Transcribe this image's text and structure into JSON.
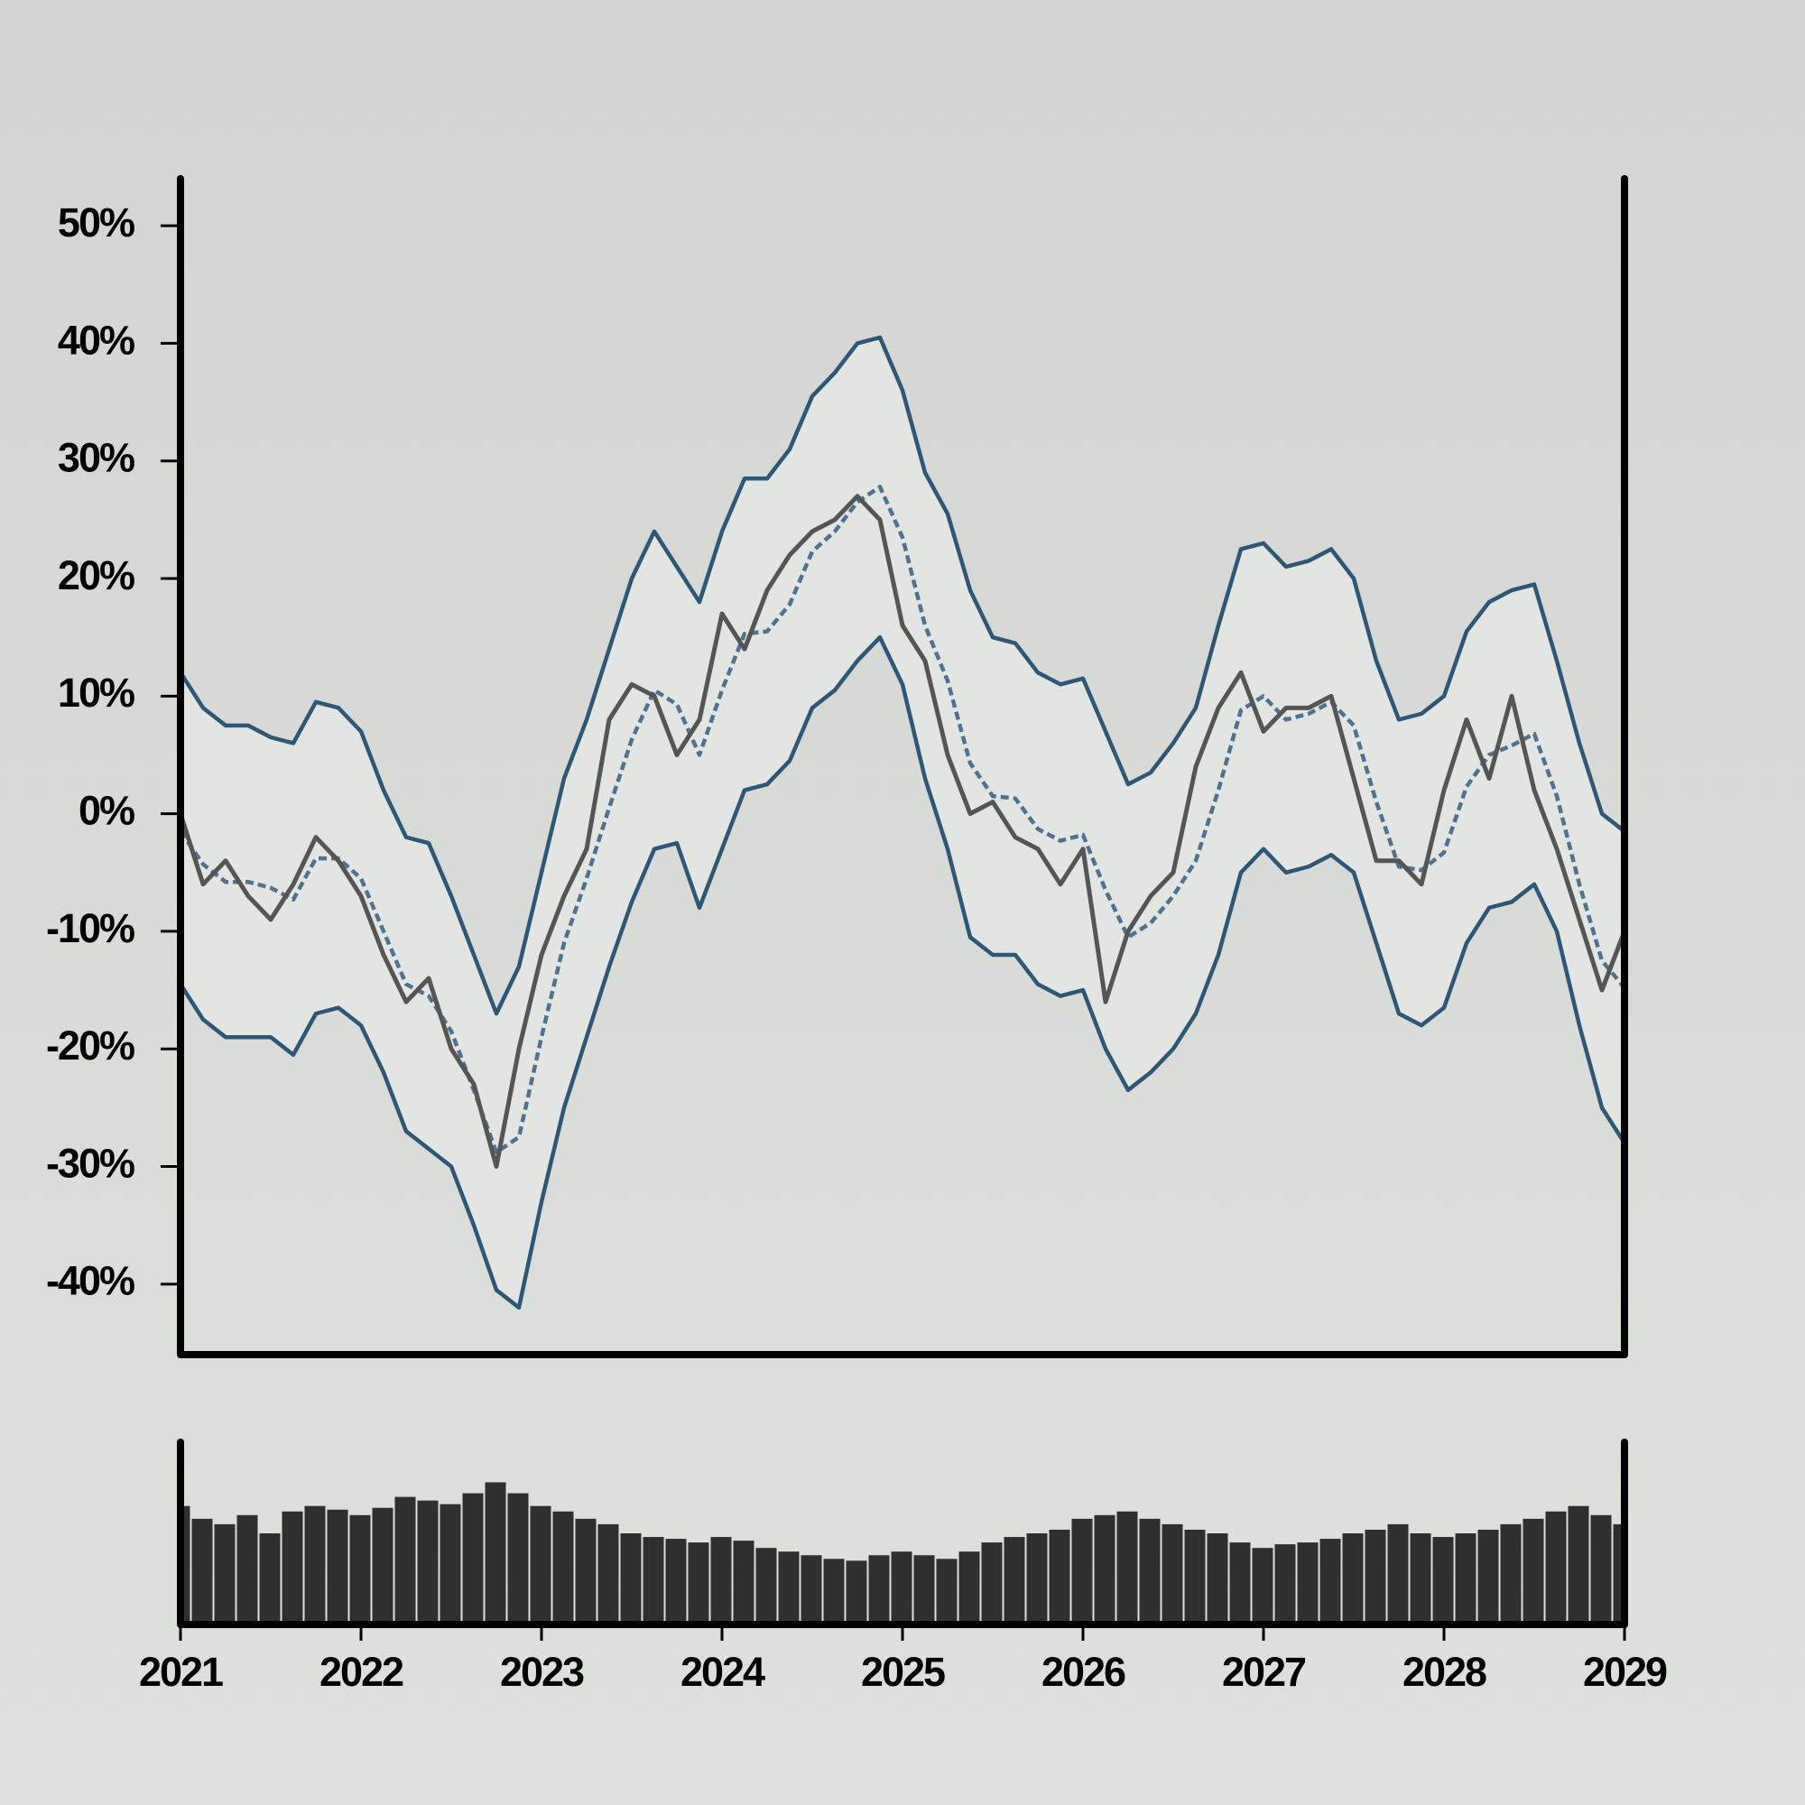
{
  "chart_data": [
    {
      "type": "line",
      "x": [
        2021,
        2021.125,
        2021.25,
        2021.375,
        2021.5,
        2021.625,
        2021.75,
        2021.875,
        2022,
        2022.125,
        2022.25,
        2022.375,
        2022.5,
        2022.625,
        2022.75,
        2022.875,
        2023,
        2023.125,
        2023.25,
        2023.375,
        2023.5,
        2023.625,
        2023.75,
        2023.875,
        2024,
        2024.125,
        2024.25,
        2024.375,
        2024.5,
        2024.625,
        2024.75,
        2024.875,
        2025,
        2025.125,
        2025.25,
        2025.375,
        2025.5,
        2025.625,
        2025.75,
        2025.875,
        2026,
        2026.125,
        2026.25,
        2026.375,
        2026.5,
        2026.625,
        2026.75,
        2026.875,
        2027,
        2027.125,
        2027.25,
        2027.375,
        2027.5,
        2027.625,
        2027.75,
        2027.875,
        2028,
        2028.125,
        2028.25,
        2028.375,
        2028.5,
        2028.625,
        2028.75,
        2028.875,
        2029
      ],
      "band_color": "#e3e5e3",
      "series": [
        {
          "role": "upper",
          "color": "#2e5675",
          "values": [
            12,
            9,
            7.5,
            7.5,
            6.5,
            6,
            9.5,
            9,
            7,
            2,
            -2,
            -2.5,
            -7,
            -12,
            -17,
            -13,
            -5,
            3,
            8,
            14,
            20,
            24,
            21,
            18,
            24,
            28.5,
            28.5,
            31,
            35.5,
            37.5,
            40,
            40.5,
            36,
            29,
            25.5,
            19,
            15,
            14.5,
            12,
            11,
            11.5,
            7,
            2.5,
            3.5,
            6,
            9,
            16,
            22.5,
            23,
            21,
            21.5,
            22.5,
            20,
            13,
            8,
            8.5,
            10,
            15.5,
            18,
            19,
            19.5,
            13,
            6,
            0,
            -1.5
          ]
        },
        {
          "role": "lower",
          "color": "#2e5675",
          "values": [
            -14.5,
            -17.5,
            -19,
            -19,
            -19,
            -20.5,
            -17,
            -16.5,
            -18,
            -22,
            -27,
            -28.5,
            -30,
            -35,
            -40.5,
            -42,
            -33,
            -25,
            -19,
            -13,
            -7.5,
            -3,
            -2.5,
            -8,
            -3,
            2,
            2.5,
            4.5,
            9,
            10.5,
            13,
            15,
            11,
            3,
            -3,
            -10.5,
            -12,
            -12,
            -14.5,
            -15.5,
            -15,
            -20,
            -23.5,
            -22,
            -20,
            -17,
            -12,
            -5,
            -3,
            -5,
            -4.5,
            -3.5,
            -5,
            -11,
            -17,
            -18,
            -16.5,
            -11,
            -8,
            -7.5,
            -6,
            -10,
            -18,
            -25,
            -28
          ]
        },
        {
          "role": "middle",
          "color": "#4f7290",
          "dashed": true,
          "values": [
            -1.5,
            -4.3,
            -5.8,
            -5.8,
            -6.3,
            -7.3,
            -3.8,
            -3.8,
            -5.5,
            -10,
            -14.5,
            -15.5,
            -18.5,
            -23.5,
            -28.8,
            -27.5,
            -19,
            -11,
            -5.5,
            0.5,
            6.3,
            10.5,
            9.3,
            5,
            10.5,
            15.3,
            15.5,
            17.8,
            22.3,
            24,
            26.5,
            27.8,
            23.5,
            16,
            11.3,
            4.3,
            1.5,
            1.3,
            -1.3,
            -2.3,
            -1.8,
            -6.5,
            -10.5,
            -9.3,
            -7,
            -4,
            2,
            8.8,
            10,
            8,
            8.5,
            9.5,
            7.5,
            1,
            -4.5,
            -4.8,
            -3.3,
            2.3,
            5,
            5.8,
            6.8,
            1.5,
            -6,
            -12.5,
            -14.8
          ]
        },
        {
          "role": "price",
          "color": "#555555",
          "values": [
            0,
            -6,
            -4,
            -7,
            -9,
            -6,
            -2,
            -4,
            -7,
            -12,
            -16,
            -14,
            -20,
            -23,
            -30,
            -20,
            -12,
            -7,
            -3,
            8,
            11,
            10,
            5,
            8,
            17,
            14,
            19,
            22,
            24,
            25,
            27,
            25,
            16,
            13,
            5,
            0,
            1,
            -2,
            -3,
            -6,
            -3,
            -16,
            -10,
            -7,
            -5,
            4,
            9,
            12,
            7,
            9,
            9,
            10,
            3,
            -4,
            -4,
            -6,
            2,
            8,
            3,
            10,
            2,
            -3,
            -9,
            -15,
            -10
          ]
        }
      ],
      "xlim": [
        2021,
        2029
      ],
      "ylim": [
        -46,
        54
      ],
      "yticks": [
        {
          "value": -40,
          "label": "-40%"
        },
        {
          "value": -30,
          "label": "-30%"
        },
        {
          "value": -20,
          "label": "-20%"
        },
        {
          "value": -10,
          "label": "-10%"
        },
        {
          "value": 0,
          "label": "0%"
        },
        {
          "value": 10,
          "label": "10%"
        },
        {
          "value": 20,
          "label": "20%"
        },
        {
          "value": 30,
          "label": "30%"
        },
        {
          "value": 40,
          "label": "40%"
        },
        {
          "value": 50,
          "label": "50%"
        }
      ]
    },
    {
      "type": "bar",
      "x": [
        2021,
        2021.125,
        2021.25,
        2021.375,
        2021.5,
        2021.625,
        2021.75,
        2021.875,
        2022,
        2022.125,
        2022.25,
        2022.375,
        2022.5,
        2022.625,
        2022.75,
        2022.875,
        2023,
        2023.125,
        2023.25,
        2023.375,
        2023.5,
        2023.625,
        2023.75,
        2023.875,
        2024,
        2024.125,
        2024.25,
        2024.375,
        2024.5,
        2024.625,
        2024.75,
        2024.875,
        2025,
        2025.125,
        2025.25,
        2025.375,
        2025.5,
        2025.625,
        2025.75,
        2025.875,
        2026,
        2026.125,
        2026.25,
        2026.375,
        2026.5,
        2026.625,
        2026.75,
        2026.875,
        2027,
        2027.125,
        2027.25,
        2027.375,
        2027.5,
        2027.625,
        2027.75,
        2027.875,
        2028,
        2028.125,
        2028.25,
        2028.375,
        2028.5,
        2028.625,
        2028.75,
        2028.875,
        2029
      ],
      "values": [
        65,
        58,
        55,
        60,
        50,
        62,
        65,
        63,
        60,
        64,
        70,
        68,
        66,
        72,
        78,
        72,
        65,
        62,
        58,
        55,
        50,
        48,
        47,
        45,
        48,
        46,
        42,
        40,
        38,
        36,
        35,
        38,
        40,
        38,
        36,
        40,
        45,
        48,
        50,
        52,
        58,
        60,
        62,
        58,
        55,
        52,
        50,
        45,
        42,
        44,
        45,
        47,
        50,
        52,
        55,
        50,
        48,
        50,
        52,
        55,
        58,
        62,
        65,
        60,
        55
      ],
      "color": "#302f30",
      "xlim": [
        2021,
        2029
      ],
      "ylim": [
        0,
        100
      ],
      "xticks": [
        2021,
        2022,
        2023,
        2024,
        2025,
        2026,
        2027,
        2028,
        2029
      ]
    }
  ]
}
